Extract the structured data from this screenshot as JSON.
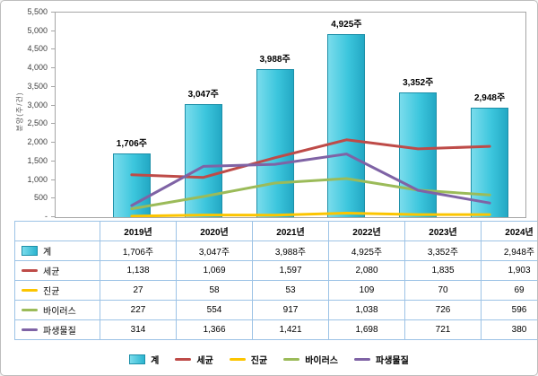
{
  "chart_data": {
    "type": "bar+line",
    "title": "",
    "xlabel": "",
    "ylabel": "분양(주/건)",
    "ylim": [
      0,
      5500
    ],
    "ytick_step": 500,
    "yticks": [
      "-",
      "500",
      "1,000",
      "1,500",
      "2,000",
      "2,500",
      "3,000",
      "3,500",
      "4,000",
      "4,500",
      "5,000",
      "5,500"
    ],
    "grid": false,
    "legend_position": "bottom",
    "categories": [
      "2019년",
      "2020년",
      "2021년",
      "2022년",
      "2023년",
      "2024년"
    ],
    "bar_series": {
      "name": "계",
      "values": [
        1706,
        3047,
        3988,
        4925,
        3352,
        2948
      ],
      "labels": [
        "1,706주",
        "3,047주",
        "3,988주",
        "4,925주",
        "3,352주",
        "2,948주"
      ],
      "color": "#3cc6dd",
      "border_color": "#1d8fa8"
    },
    "line_series": [
      {
        "name": "세균",
        "values": [
          1138,
          1069,
          1597,
          2080,
          1835,
          1903
        ],
        "labels": [
          "1,138",
          "1,069",
          "1,597",
          "2,080",
          "1,835",
          "1,903"
        ],
        "color": "#be4b48"
      },
      {
        "name": "진균",
        "values": [
          27,
          58,
          53,
          109,
          70,
          69
        ],
        "labels": [
          "27",
          "58",
          "53",
          "109",
          "70",
          "69"
        ],
        "color": "#fcc500"
      },
      {
        "name": "바이러스",
        "values": [
          227,
          554,
          917,
          1038,
          726,
          596
        ],
        "labels": [
          "227",
          "554",
          "917",
          "1,038",
          "726",
          "596"
        ],
        "color": "#9bbb59"
      },
      {
        "name": "파생물질",
        "values": [
          314,
          1366,
          1421,
          1698,
          721,
          380
        ],
        "labels": [
          "314",
          "1,366",
          "1,421",
          "1,698",
          "721",
          "380"
        ],
        "color": "#7f63a5"
      }
    ]
  }
}
